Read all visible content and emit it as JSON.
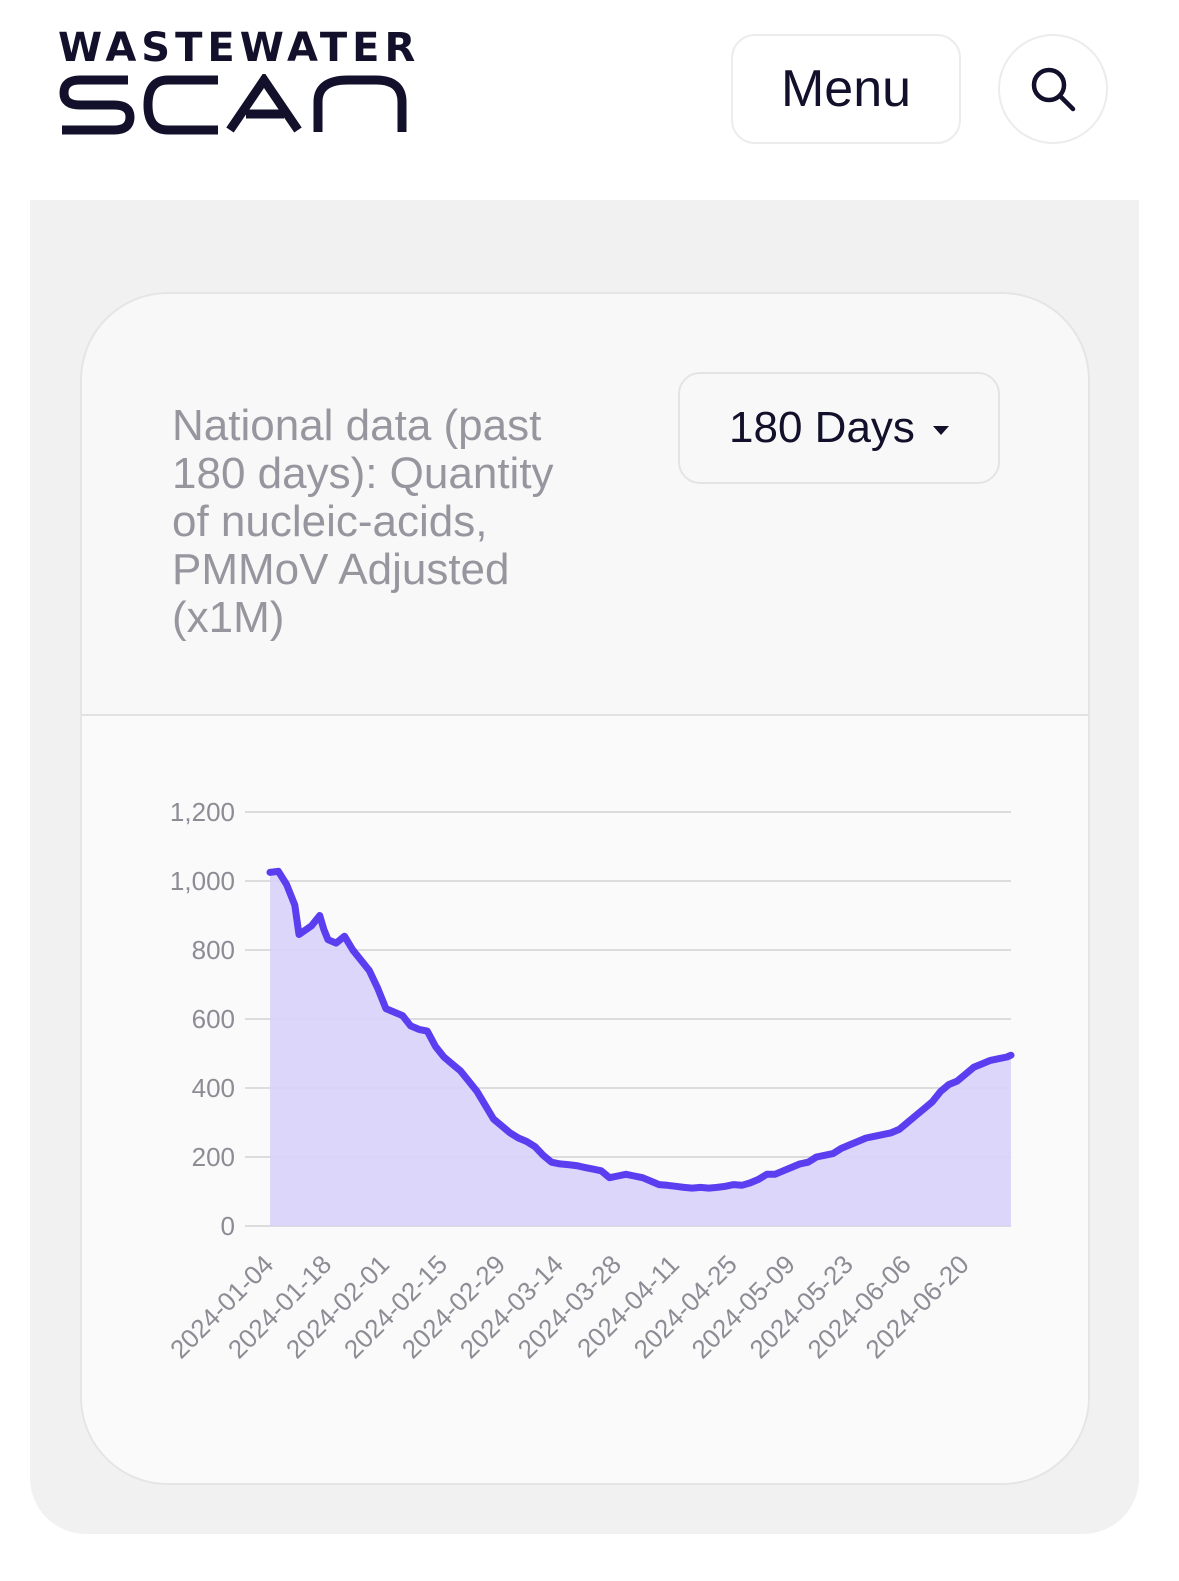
{
  "header": {
    "logo_top": "WASTEWATER",
    "logo_bottom": "SCAN",
    "menu_label": "Menu",
    "search_icon": "search-icon"
  },
  "card": {
    "title": "National data (past 180 days): Quantity of nucleic-acids, PMMoV Adjusted (x1M)",
    "range_selected": "180 Days",
    "range_icon": "caret-down-icon"
  },
  "colors": {
    "line": "#5a3ef0",
    "fill": "#d8d2fb",
    "grid": "#dcdcdf",
    "text": "#12102a",
    "muted": "#97969f"
  },
  "chart_data": {
    "type": "area",
    "title": "",
    "xlabel": "",
    "ylabel": "",
    "ylim": [
      0,
      1200
    ],
    "yticks": [
      "0",
      "200",
      "400",
      "600",
      "800",
      "1,000",
      "1,200"
    ],
    "xticks": [
      "2024-01-04",
      "2024-01-18",
      "2024-02-01",
      "2024-02-15",
      "2024-02-29",
      "2024-03-14",
      "2024-03-28",
      "2024-04-11",
      "2024-04-25",
      "2024-05-09",
      "2024-05-23",
      "2024-06-06",
      "2024-06-20"
    ],
    "grid": true,
    "series": [
      {
        "x": [
          "2024-01-04",
          "2024-01-06",
          "2024-01-08",
          "2024-01-10",
          "2024-01-11",
          "2024-01-14",
          "2024-01-16",
          "2024-01-17",
          "2024-01-18",
          "2024-01-20",
          "2024-01-22",
          "2024-01-24",
          "2024-01-26",
          "2024-01-28",
          "2024-01-30",
          "2024-02-01",
          "2024-02-03",
          "2024-02-05",
          "2024-02-07",
          "2024-02-09",
          "2024-02-11",
          "2024-02-13",
          "2024-02-15",
          "2024-02-17",
          "2024-02-19",
          "2024-02-21",
          "2024-02-23",
          "2024-02-25",
          "2024-02-27",
          "2024-02-29",
          "2024-03-02",
          "2024-03-04",
          "2024-03-06",
          "2024-03-08",
          "2024-03-10",
          "2024-03-12",
          "2024-03-14",
          "2024-03-16",
          "2024-03-18",
          "2024-03-20",
          "2024-03-22",
          "2024-03-24",
          "2024-03-26",
          "2024-03-28",
          "2024-03-30",
          "2024-04-01",
          "2024-04-03",
          "2024-04-05",
          "2024-04-07",
          "2024-04-09",
          "2024-04-11",
          "2024-04-13",
          "2024-04-15",
          "2024-04-17",
          "2024-04-19",
          "2024-04-21",
          "2024-04-23",
          "2024-04-25",
          "2024-04-27",
          "2024-04-29",
          "2024-05-01",
          "2024-05-03",
          "2024-05-05",
          "2024-05-07",
          "2024-05-09",
          "2024-05-11",
          "2024-05-13",
          "2024-05-15",
          "2024-05-17",
          "2024-05-19",
          "2024-05-21",
          "2024-05-23",
          "2024-05-25",
          "2024-05-27",
          "2024-05-29",
          "2024-05-31",
          "2024-06-02",
          "2024-06-04",
          "2024-06-06",
          "2024-06-08",
          "2024-06-10",
          "2024-06-12",
          "2024-06-14",
          "2024-06-16",
          "2024-06-18",
          "2024-06-20",
          "2024-06-22",
          "2024-06-24",
          "2024-06-26",
          "2024-06-28",
          "2024-06-30",
          "2024-07-01"
        ],
        "values": [
          1025,
          1028,
          990,
          930,
          845,
          870,
          900,
          860,
          830,
          820,
          840,
          800,
          770,
          740,
          690,
          630,
          620,
          610,
          580,
          570,
          565,
          520,
          490,
          470,
          450,
          420,
          390,
          350,
          310,
          290,
          270,
          255,
          245,
          230,
          205,
          185,
          180,
          178,
          175,
          170,
          165,
          160,
          140,
          145,
          150,
          145,
          140,
          130,
          120,
          118,
          115,
          112,
          110,
          112,
          110,
          112,
          115,
          120,
          118,
          125,
          135,
          150,
          150,
          160,
          170,
          180,
          185,
          200,
          205,
          210,
          225,
          235,
          245,
          255,
          260,
          265,
          270,
          280,
          300,
          320,
          340,
          360,
          390,
          410,
          420,
          440,
          460,
          470,
          480,
          485,
          490,
          495
        ]
      }
    ]
  }
}
